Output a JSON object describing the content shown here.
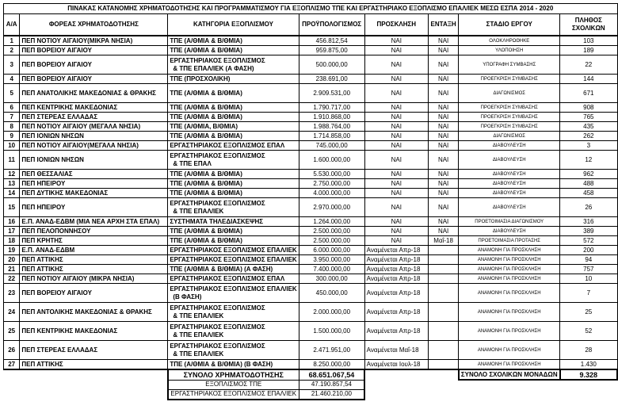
{
  "title": "ΠΙΝΑΚΑΣ ΚΑΤΑΝΟΜΗΣ ΧΡΗΜΑΤΟΔΟΤΗΣΗΣ ΚΑΙ ΠΡΟΓΡΑΜΜΑΤΙΣΜΟΥ ΓΙΑ ΕΞΟΠΛΙΣΜΟ ΤΠΕ ΚΑΙ ΕΡΓΑΣΤΗΡΙΑΚΟ ΕΞΟΠΛΙΣΜΟ ΕΠΑΛ/ΙΕΚ ΜΕΣΩ ΕΣΠΑ 2014 - 2020",
  "headers": {
    "aa": "Α/Α",
    "foreas": "ΦΟΡΕΑΣ ΧΡΗΜΑΤΟΔΟΤΗΣΗΣ",
    "category": "ΚΑΤΗΓΟΡΙΑ ΕΞΟΠΛΙΣΜΟΥ",
    "budget": "ΠΡΟΫΠΟΛΟΓΙΣΜΟΣ",
    "proclamation": "ΠΡΟΣΚΛΗΣΗ",
    "entaxi": "ΕΝΤΑΞΗ",
    "stage": "ΣΤΑΔΙΟ ΕΡΓΟΥ",
    "schools_1": "ΠΛΗΘΟΣ",
    "schools_2": "ΣΧΟΛΙΚΩΝ"
  },
  "rows": [
    {
      "aa": "1",
      "foreas": "ΠΕΠ ΝΟΤΙΟΥ ΑΙΓΑΙΟΥ(ΜΙΚΡΑ ΝΗΣΙΑ)",
      "category": [
        "ΤΠΕ (Α/ΘΜΙΑ & Β/ΘΜΙΑ)"
      ],
      "budget": "456.812,54",
      "proclamation": "ΝΑΙ",
      "entaxi": "ΝΑΙ",
      "stage": "ΟΛΟΚΛΗΡΩΘΗΚΕ",
      "schools": "103"
    },
    {
      "aa": "2",
      "foreas": "ΠΕΠ ΒΟΡΕΙΟΥ ΑΙΓΑΙΟΥ",
      "category": [
        "ΤΠΕ (Α/ΘΜΙΑ & Β/ΘΜΙΑ)"
      ],
      "budget": "959.875,00",
      "proclamation": "ΝΑΙ",
      "entaxi": "ΝΑΙ",
      "stage": "ΥΛΟΠΟΙΗΣΗ",
      "schools": "189"
    },
    {
      "aa": "3",
      "foreas": "ΠΕΠ ΒΟΡΕΙΟΥ ΑΙΓΑΙΟΥ",
      "category": [
        "ΕΡΓΑΣΤΗΡΙΑΚΟΣ ΕΞΟΠΛΙΣΜΟΣ",
        "& ΤΠΕ ΕΠΑΛ/ΙΕΚ (Α ΦΑΣΗ)"
      ],
      "budget": "500.000,00",
      "proclamation": "ΝΑΙ",
      "entaxi": "ΝΑΙ",
      "stage": "ΥΠΟΓΡΑΦΗ ΣΥΜΒΑΣΗΣ",
      "schools": "22"
    },
    {
      "aa": "4",
      "foreas": "ΠΕΠ ΒΟΡΕΙΟΥ ΑΙΓΑΙΟΥ",
      "category": [
        "ΤΠΕ (ΠΡΟΣΧΟΛΙΚΗ)"
      ],
      "budget": "238.691,00",
      "proclamation": "ΝΑΙ",
      "entaxi": "ΝΑΙ",
      "stage": "ΠΡΟΕΓΚΡΙΣΗ ΣΥΜΒΑΣΗΣ",
      "schools": "144"
    },
    {
      "aa": "5",
      "foreas": "ΠΕΠ ΑΝΑΤΟΛΙΚΗΣ ΜΑΚΕΔΟΝΙΑΣ & ΘΡΑΚΗΣ",
      "category": [
        "ΤΠΕ (Α/ΘΜΙΑ & Β/ΘΜΙΑ)"
      ],
      "tall": true,
      "budget": "2.909.531,00",
      "proclamation": "ΝΑΙ",
      "entaxi": "ΝΑΙ",
      "stage": "ΔΙΑΓΩΝΙΣΜΟΣ",
      "schools": "671"
    },
    {
      "aa": "6",
      "foreas": "ΠΕΠ ΚΕΝΤΡΙΚΗΣ ΜΑΚΕΔΟΝΙΑΣ",
      "category": [
        "ΤΠΕ (Α/ΘΜΙΑ & Β/ΘΜΙΑ)"
      ],
      "budget": "1.790.717,00",
      "proclamation": "ΝΑΙ",
      "entaxi": "ΝΑΙ",
      "stage": "ΠΡΟΕΓΚΡΙΣΗ ΣΥΜΒΑΣΗΣ",
      "schools": "908"
    },
    {
      "aa": "7",
      "foreas": "ΠΕΠ ΣΤΕΡΕΑΣ ΕΛΛΑΔΑΣ",
      "category": [
        "ΤΠΕ (Α/ΘΜΙΑ & Β/ΘΜΙΑ)"
      ],
      "budget": "1.910.868,00",
      "proclamation": "ΝΑΙ",
      "entaxi": "ΝΑΙ",
      "stage": "ΠΡΟΕΓΚΡΙΣΗ ΣΥΜΒΑΣΗΣ",
      "schools": "765"
    },
    {
      "aa": "8",
      "foreas": "ΠΕΠ  ΝΟΤΙΟΥ ΑΙΓΑΙΟΥ (ΜΕΓΑΛΑ ΝΗΣΙΑ)",
      "category": [
        "ΤΠΕ (Α/ΘΜΙΑ, Β/ΘΜΙΑ)"
      ],
      "budget": "1.988.764,00",
      "proclamation": "ΝΑΙ",
      "entaxi": "ΝΑΙ",
      "stage": "ΠΡΟΕΓΚΡΙΣΗ ΣΥΜΒΑΣΗΣ",
      "schools": "435"
    },
    {
      "aa": "9",
      "foreas": "ΠΕΠ ΙΟΝΙΩΝ ΝΗΣΩΝ",
      "category": [
        "ΤΠΕ (Α/ΘΜΙΑ & Β/ΘΜΙΑ)"
      ],
      "budget": "1.714.858,00",
      "proclamation": "ΝΑΙ",
      "entaxi": "ΝΑΙ",
      "stage": "ΔΙΑΓΩΝΙΣΜΟΣ",
      "schools": "262"
    },
    {
      "aa": "10",
      "foreas": "ΠΕΠ ΝΟΤΙΟΥ ΑΙΓΑΙΟΥ(ΜΕΓΑΛΑ ΝΗΣΙΑ)",
      "category": [
        "ΕΡΓΑΣΤΗΡΙΑΚΟΣ ΕΞΟΠΛΙΣΜΟΣ ΕΠΑΛ"
      ],
      "budget": "745.000,00",
      "proclamation": "ΝΑΙ",
      "entaxi": "ΝΑΙ",
      "stage": "ΔΙΑΒΟΥΛΕΥΣΗ",
      "schools": "3"
    },
    {
      "aa": "11",
      "foreas": "ΠΕΠ ΙΟΝΙΩΝ ΝΗΣΩΝ",
      "category": [
        "ΕΡΓΑΣΤΗΡΙΑΚΟΣ ΕΞΟΠΛΙΣΜΟΣ",
        "& ΤΠΕ ΕΠΑΛ"
      ],
      "budget": "1.600.000,00",
      "proclamation": "ΝΑΙ",
      "entaxi": "ΝΑΙ",
      "stage": "ΔΙΑΒΟΥΛΕΥΣΗ",
      "schools": "12"
    },
    {
      "aa": "12",
      "foreas": "ΠΕΠ ΘΕΣΣΑΛΙΑΣ",
      "category": [
        "ΤΠΕ (Α/ΘΜΙΑ & Β/ΘΜΙΑ)"
      ],
      "budget": "5.530.000,00",
      "proclamation": "ΝΑΙ",
      "entaxi": "ΝΑΙ",
      "stage": "ΔΙΑΒΟΥΛΕΥΣΗ",
      "schools": "962"
    },
    {
      "aa": "13",
      "foreas": "ΠΕΠ ΗΠΕΙΡΟΥ",
      "category": [
        "ΤΠΕ (Α/ΘΜΙΑ & Β/ΘΜΙΑ)"
      ],
      "budget": "2.750.000,00",
      "proclamation": "ΝΑΙ",
      "entaxi": "ΝΑΙ",
      "stage": "ΔΙΑΒΟΥΛΕΥΣΗ",
      "schools": "488"
    },
    {
      "aa": "14",
      "foreas": "ΠΕΠ  ΔΥΤΙΚΗΣ ΜΑΚΕΔΟΝΙΑΣ",
      "category": [
        "ΤΠΕ (Α/ΘΜΙΑ & Β/ΘΜΙΑ)"
      ],
      "budget": "4.000.000,00",
      "proclamation": "ΝΑΙ",
      "entaxi": "ΝΑΙ",
      "stage": "ΔΙΑΒΟΥΛΕΥΣΗ",
      "schools": "458"
    },
    {
      "aa": "15",
      "foreas": "ΠΕΠ ΗΠΕΙΡΟΥ",
      "category": [
        "ΕΡΓΑΣΤΗΡΙΑΚΟΣ ΕΞΟΠΛΙΣΜΟΣ",
        "& ΤΠΕ ΕΠΑΛ/ΙΕΚ"
      ],
      "budget": "2.970.000,00",
      "proclamation": "ΝΑΙ",
      "entaxi": "ΝΑΙ",
      "stage": "ΔΙΑΒΟΥΛΕΥΣΗ",
      "schools": "26"
    },
    {
      "aa": "16",
      "foreas": "Ε.Π. ΑΝΑΔ-ΕΔΒΜ  (ΜΙΑ ΝΕΑ ΑΡΧΗ ΣΤΑ ΕΠΑΛ)",
      "category": [
        "ΣΥΣΤΗΜΑΤΑ ΤΗΛΕΔΙΑΣΚΕΨΗΣ"
      ],
      "budget": "1.264.000,00",
      "proclamation": "ΝΑΙ",
      "entaxi": "ΝΑΙ",
      "stage": "ΠΡΟΕΤΟΙΜΑΣΙΑ ΔΙΑΓΩΝΙΣΜΟΥ",
      "schools": "316"
    },
    {
      "aa": "17",
      "foreas": "ΠΕΠ ΠΕΛΟΠΟΝΝΗΣΟΥ",
      "category": [
        "ΤΠΕ (Α/ΘΜΙΑ & Β/ΘΜΙΑ)"
      ],
      "budget": "2.500.000,00",
      "proclamation": "ΝΑΙ",
      "entaxi": "ΝΑΙ",
      "stage": "ΔΙΑΒΟΥΛΕΥΣΗ",
      "schools": "389"
    },
    {
      "aa": "18",
      "foreas": "ΠΕΠ ΚΡΗΤΗΣ",
      "category": [
        "ΤΠΕ (Α/ΘΜΙΑ & Β/ΘΜΙΑ)"
      ],
      "budget": "2.500.000,00",
      "proclamation": "ΝΑΙ",
      "entaxi": "Μαΐ-18",
      "stage": "ΠΡΟΕΤΟΙΜΑΣΙΑ ΠΡΟΤΑΣΗΣ",
      "schools": "572"
    },
    {
      "aa": "19",
      "foreas": "Ε.Π. ΑΝΑΔ-ΕΔΒΜ",
      "category": [
        "ΕΡΓΑΣΤΗΡΙΑΚΟΣ ΕΞΟΠΛΙΣΜΟΣ ΕΠΑΛ/ΙΕΚ"
      ],
      "budget": "6.000.000,00",
      "proclamation": "Αναμένεται Απρ-18",
      "entaxi": "",
      "stage": "ΑΝΑΜΟΝΗ ΓΙΑ ΠΡΟΣΚΛΗΣΗ",
      "schools": "200"
    },
    {
      "aa": "20",
      "foreas": "ΠΕΠ ΑΤΤΙΚΗΣ",
      "category": [
        "ΕΡΓΑΣΤΗΡΙΑΚΟΣ ΕΞΟΠΛΙΣΜΟΣ ΕΠΑΛ/ΙΕΚ"
      ],
      "budget": "3.950.000,00",
      "proclamation": "Αναμένεται Απρ-18",
      "entaxi": "",
      "stage": "ΑΝΑΜΟΝΗ ΓΙΑ ΠΡΟΣΚΛΗΣΗ",
      "schools": "94"
    },
    {
      "aa": "21",
      "foreas": "ΠΕΠ ΑΤΤΙΚΗΣ",
      "category": [
        "ΤΠΕ (Α/ΘΜΙΑ & Β/ΘΜΙΑ) (Α ΦΑΣΗ)"
      ],
      "budget": "7.400.000,00",
      "proclamation": "Αναμένεται Απρ-18",
      "entaxi": "",
      "stage": "ΑΝΑΜΟΝΗ ΓΙΑ ΠΡΟΣΚΛΗΣΗ",
      "schools": "757"
    },
    {
      "aa": "22",
      "foreas": "ΠΕΠ ΝΟΤΙΟΥ ΑΙΓΑΙΟΥ (ΜΙΚΡΑ ΝΗΣΙΑ)",
      "category": [
        "ΕΡΓΑΣΤΗΡΙΑΚΟΣ ΕΞΟΠΛΙΣΜΟΣ ΕΠΑΛ"
      ],
      "budget": "300.000,00",
      "proclamation": "Αναμένεται Απρ-18",
      "entaxi": "",
      "stage": "ΑΝΑΜΟΝΗ ΓΙΑ ΠΡΟΣΚΛΗΣΗ",
      "schools": "10"
    },
    {
      "aa": "23",
      "foreas": "ΠΕΠ ΒΟΡΕΙΟΥ ΑΙΓΑΙΟΥ",
      "category": [
        "ΕΡΓΑΣΤΗΡΙΑΚΟΣ ΕΞΟΠΛΙΣΜΟΣ ΕΠΑΛ/ΙΕΚ",
        "(Β ΦΑΣΗ)"
      ],
      "budget": "450.000,00",
      "proclamation": "Αναμένεται Απρ-18",
      "entaxi": "",
      "stage": "ΑΝΑΜΟΝΗ ΓΙΑ ΠΡΟΣΚΛΗΣΗ",
      "schools": "7"
    },
    {
      "aa": "24",
      "foreas": "ΠΕΠ  ΑΝΤΟΛΙΚΗΣ ΜΑΚΕΔΟΝΙΑΣ & ΘΡΑΚΗΣ",
      "category": [
        "ΕΡΓΑΣΤΗΡΙΑΚΟΣ ΕΞΟΠΛΙΣΜΟΣ",
        "& ΤΠΕ ΕΠΑΛ/ΙΕΚ"
      ],
      "budget": "2.000.000,00",
      "proclamation": "Αναμένεται Απρ-18",
      "entaxi": "",
      "stage": "ΑΝΑΜΟΝΗ ΓΙΑ ΠΡΟΣΚΛΗΣΗ",
      "schools": "25"
    },
    {
      "aa": "25",
      "foreas": "ΠΕΠ ΚΕΝΤΡΙΚΗΣ ΜΑΚΕΔΟΝΙΑΣ",
      "category": [
        "ΕΡΓΑΣΤΗΡΙΑΚΟΣ ΕΞΟΠΛΙΣΜΟΣ",
        "& ΤΠΕ ΕΠΑΛ/ΙΕΚ"
      ],
      "budget": "1.500.000,00",
      "proclamation": "Αναμένεται Απρ-18",
      "entaxi": "",
      "stage": "ΑΝΑΜΟΝΗ ΓΙΑ ΠΡΟΣΚΛΗΣΗ",
      "schools": "52"
    },
    {
      "aa": "26",
      "foreas": "ΠΕΠ ΣΤΕΡΕΑΣ ΕΛΛΑΔΑΣ",
      "category": [
        "ΕΡΓΑΣΤΗΡΙΑΚΟΣ ΕΞΟΠΛΙΣΜΟΣ",
        "& ΤΠΕ ΕΠΑΛ/ΙΕΚ"
      ],
      "budget": "2.471.951,00",
      "proclamation": "Αναμένεται Μαΐ-18",
      "entaxi": "",
      "stage": "ΑΝΑΜΟΝΗ ΓΙΑ ΠΡΟΣΚΛΗΣΗ",
      "schools": "28"
    },
    {
      "aa": "27",
      "foreas": "ΠΕΠ ΑΤΤΙΚΗΣ",
      "category": [
        "ΤΠΕ (Α/ΘΜΙΑ & Β/ΘΜΙΑ) (Β ΦΑΣΗ)"
      ],
      "budget": "8.250.000,00",
      "proclamation": "Αναμένεται Ιουλ-18",
      "entaxi": "",
      "stage": "ΑΝΑΜΟΝΗ ΓΙΑ ΠΡΟΣΚΛΗΣΗ",
      "schools": "1.430"
    }
  ],
  "totals": {
    "funding_label": "ΣΥΝΟΛΟ ΧΡΗΜΑΤΟΔΟΤΗΣΗΣ",
    "funding_value": "68.651.067,54",
    "tpe_label": "ΕΞΟΠΛΙΣΜΟΣ ΤΠΕ",
    "tpe_value": "47.190.857,54",
    "lab_label": "ΕΡΓΑΣΤΗΡΙΑΚΟΣ ΕΞΟΠΛΙΣΜΟΣ ΕΠΑΛ/ΙΕΚ",
    "lab_value": "21.460.210,00",
    "schools_label": "ΣΥΝΟΛΟ ΣΧΟΛΙΚΩΝ ΜΟΝΑΔΩΝ",
    "schools_value": "9.328"
  }
}
